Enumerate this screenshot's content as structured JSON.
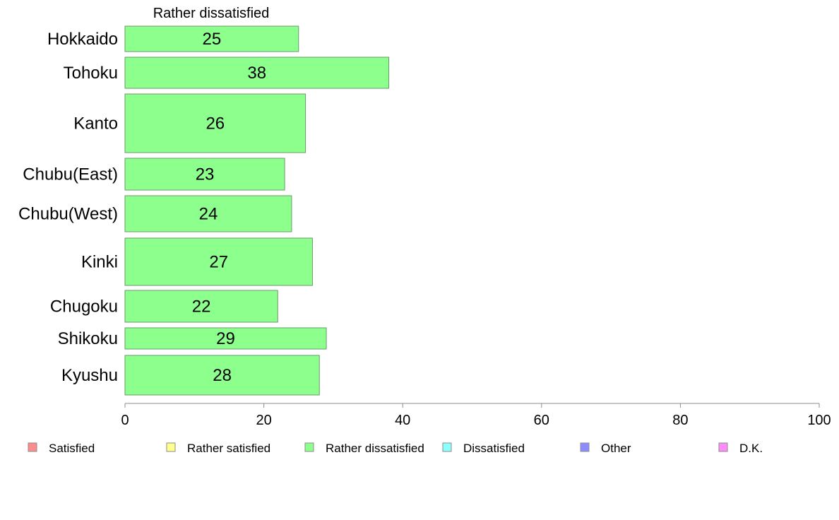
{
  "chart_data": {
    "type": "bar",
    "orientation": "horizontal",
    "title": "Rather dissatisfied",
    "categories": [
      "Hokkaido",
      "Tohoku",
      "Kanto",
      "Chubu(East)",
      "Chubu(West)",
      "Kinki",
      "Chugoku",
      "Shikoku",
      "Kyushu"
    ],
    "series": [
      {
        "name": "Rather dissatisfied",
        "values": [
          25,
          38,
          26,
          23,
          24,
          27,
          22,
          29,
          28
        ],
        "color": "#8cff8c"
      }
    ],
    "xlim": [
      0,
      100
    ],
    "xticks": [
      0,
      20,
      40,
      60,
      80,
      100
    ],
    "grid": false,
    "legend_position": "bottom",
    "legend": [
      {
        "label": "Satisfied",
        "color": "#ff8c8c"
      },
      {
        "label": "Rather satisfied",
        "color": "#ffff8c"
      },
      {
        "label": "Rather dissatisfied",
        "color": "#8cff8c"
      },
      {
        "label": "Dissatisfied",
        "color": "#8cffff"
      },
      {
        "label": "Other",
        "color": "#8c8cff"
      },
      {
        "label": "D.K.",
        "color": "#ff8cff"
      }
    ]
  }
}
